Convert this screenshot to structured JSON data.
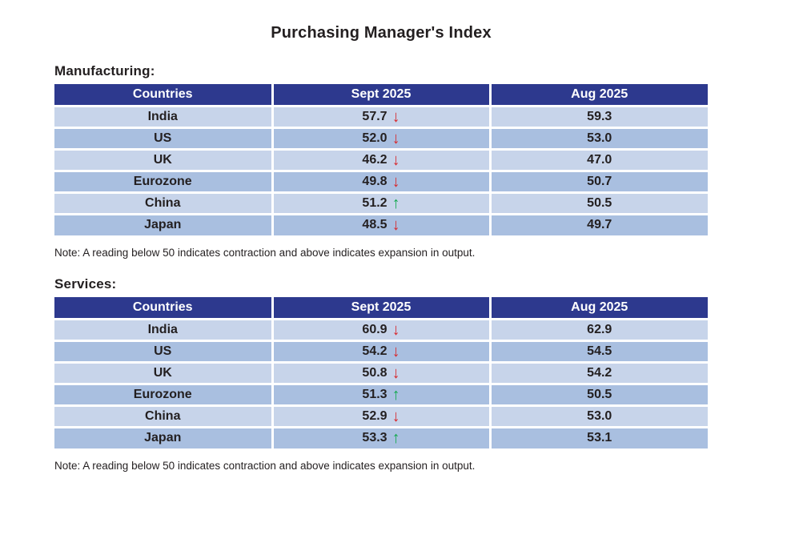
{
  "title": "Purchasing Manager's Index",
  "colors": {
    "header_bg": "#2d398e",
    "header_text": "#ffffff",
    "row_light": "#c7d4ea",
    "row_dark": "#a9bfe0",
    "body_text": "#231f20",
    "arrow_down": "#d7282d",
    "arrow_up": "#13a94e"
  },
  "icons": {
    "down_arrow": "↓",
    "up_arrow": "↑"
  },
  "chart_data": [
    {
      "type": "table",
      "section_label": "Manufacturing:",
      "columns": [
        "Countries",
        "Sept 2025",
        "Aug 2025"
      ],
      "rows": [
        {
          "country": "India",
          "sept_2025": "57.7",
          "trend": "down",
          "arrow": "↓",
          "aug_2025": "59.3"
        },
        {
          "country": "US",
          "sept_2025": "52.0",
          "trend": "down",
          "arrow": "↓",
          "aug_2025": "53.0"
        },
        {
          "country": "UK",
          "sept_2025": "46.2",
          "trend": "down",
          "arrow": "↓",
          "aug_2025": "47.0"
        },
        {
          "country": "Eurozone",
          "sept_2025": "49.8",
          "trend": "down",
          "arrow": "↓",
          "aug_2025": "50.7"
        },
        {
          "country": "China",
          "sept_2025": "51.2",
          "trend": "up",
          "arrow": "↑",
          "aug_2025": "50.5"
        },
        {
          "country": "Japan",
          "sept_2025": "48.5",
          "trend": "down",
          "arrow": "↓",
          "aug_2025": "49.7"
        }
      ],
      "note": "Note: A reading below 50 indicates contraction and above indicates expansion in output."
    },
    {
      "type": "table",
      "section_label": "Services:",
      "columns": [
        "Countries",
        "Sept 2025",
        "Aug 2025"
      ],
      "rows": [
        {
          "country": "India",
          "sept_2025": "60.9",
          "trend": "down",
          "arrow": "↓",
          "aug_2025": "62.9"
        },
        {
          "country": "US",
          "sept_2025": "54.2",
          "trend": "down",
          "arrow": "↓",
          "aug_2025": "54.5"
        },
        {
          "country": "UK",
          "sept_2025": "50.8",
          "trend": "down",
          "arrow": "↓",
          "aug_2025": "54.2"
        },
        {
          "country": "Eurozone",
          "sept_2025": "51.3",
          "trend": "up",
          "arrow": "↑",
          "aug_2025": "50.5"
        },
        {
          "country": "China",
          "sept_2025": "52.9",
          "trend": "down",
          "arrow": "↓",
          "aug_2025": "53.0"
        },
        {
          "country": "Japan",
          "sept_2025": "53.3",
          "trend": "up",
          "arrow": "↑",
          "aug_2025": "53.1"
        }
      ],
      "note": "Note: A reading below 50 indicates contraction and above indicates expansion in output."
    }
  ]
}
